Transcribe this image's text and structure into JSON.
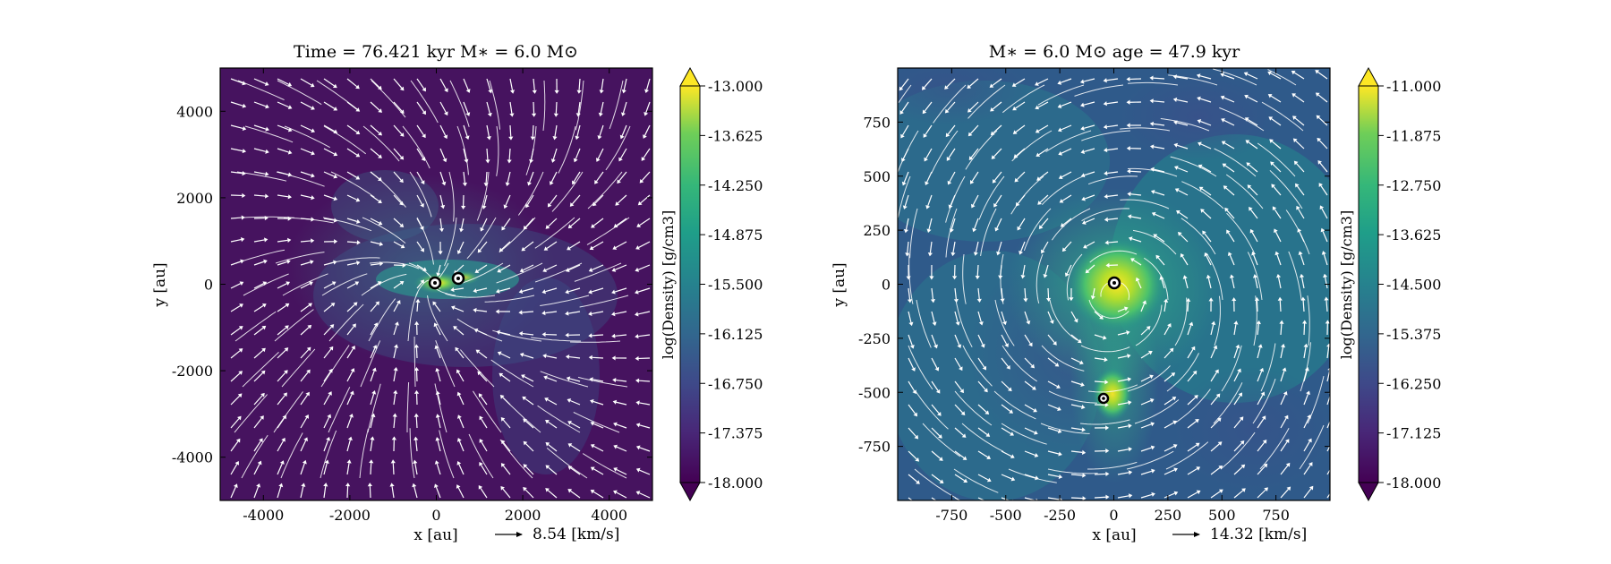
{
  "chart_data": [
    {
      "type": "heatmap",
      "title": "Time = 76.421  kyr    M$_*$ = 6.0 M$_\\odot$",
      "title_text": "Time = 76.421 kyr   M∗ = 6.0 M⊙",
      "xlabel": "x [au]",
      "ylabel": "y [au]",
      "xlim": [
        -5000,
        5000
      ],
      "ylim": [
        -5000,
        5000
      ],
      "xticks": [
        -4000,
        -2000,
        0,
        2000,
        4000
      ],
      "yticks": [
        4000,
        2000,
        0,
        -2000,
        -4000
      ],
      "colorbar": {
        "label": "log(Density) [g/cm3]",
        "range": [
          -18.0,
          -13.0
        ],
        "ticks": [
          "-13.000",
          "-13.625",
          "-14.250",
          "-14.875",
          "-15.500",
          "-16.125",
          "-16.750",
          "-17.375",
          "-18.000"
        ],
        "colormap": "viridis",
        "extend": "both"
      },
      "velocity_key": "8.54 [km/s]",
      "sinks": [
        {
          "x": -20,
          "y": -30
        },
        {
          "x": 520,
          "y": 70
        }
      ],
      "overlays": [
        "streamlines",
        "velocity-arrows"
      ]
    },
    {
      "type": "heatmap",
      "title_text": "M∗ = 6.0 M⊙         age = 47.9 kyr",
      "xlabel": "x [au]",
      "ylabel": "y [au]",
      "xlim": [
        -1000,
        1000
      ],
      "ylim": [
        -1000,
        1000
      ],
      "xticks": [
        -750,
        -500,
        -250,
        0,
        250,
        500,
        750
      ],
      "yticks": [
        750,
        500,
        250,
        0,
        -250,
        -500,
        -750
      ],
      "colorbar": {
        "label": "log(Density) [g/cm3]",
        "range": [
          -18.0,
          -11.0
        ],
        "ticks": [
          "-11.000",
          "-11.875",
          "-12.750",
          "-13.625",
          "-14.500",
          "-15.375",
          "-16.250",
          "-17.125",
          "-18.000"
        ],
        "colormap": "viridis",
        "extend": "both"
      },
      "velocity_key": "14.32 [km/s]",
      "sinks": [
        {
          "x": 0,
          "y": 0
        },
        {
          "x": -45,
          "y": -530
        }
      ],
      "overlays": [
        "streamlines",
        "velocity-arrows"
      ]
    }
  ],
  "colors": {
    "viridis_low": "#440154",
    "viridis_mid": "#21918c",
    "viridis_high": "#fde725",
    "overlay": "#ffffff"
  }
}
